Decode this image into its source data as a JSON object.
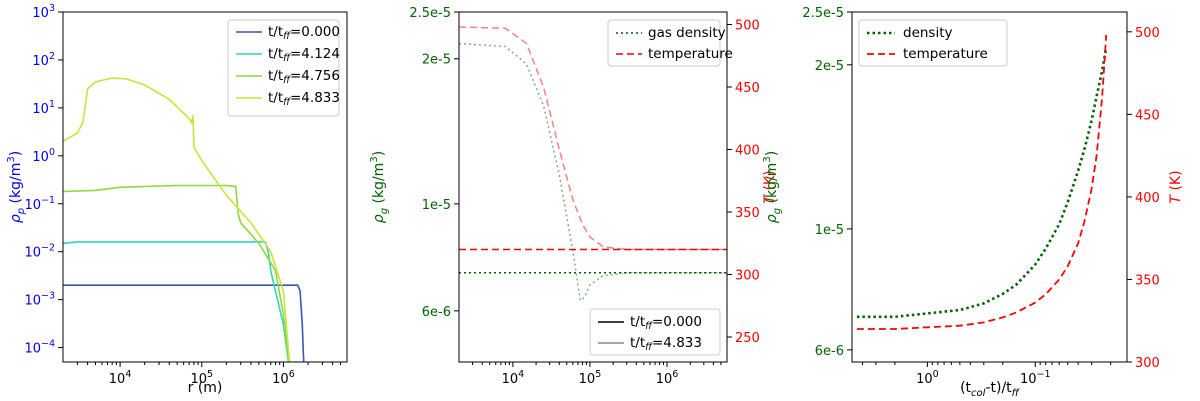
{
  "colors": {
    "p1_axis": "#0000ff",
    "green": "#006400",
    "red": "#ff0000",
    "s0": "#3b54b8",
    "s1": "#2fd8b9",
    "s2": "#8fd93a",
    "s3": "#c9e43b"
  },
  "chart_data": [
    {
      "type": "line",
      "xscale": "log",
      "yscale": "log",
      "xlim": [
        2000,
        6000000
      ],
      "ylim": [
        5e-05,
        1000
      ],
      "xlabel": "r (m)",
      "ylabel": "ρp (kg/m³)",
      "ylabel_parts": {
        "sym": "ρ",
        "sub": "p",
        "unit": " (kg/m",
        "sup": "3",
        "close": ")"
      },
      "xticks": [
        {
          "v": 10000,
          "b": "10",
          "e": "4"
        },
        {
          "v": 100000,
          "b": "10",
          "e": "5"
        },
        {
          "v": 1000000,
          "b": "10",
          "e": "6"
        }
      ],
      "yticks": [
        {
          "v": 0.0001,
          "b": "10",
          "e": "−4"
        },
        {
          "v": 0.001,
          "b": "10",
          "e": "−3"
        },
        {
          "v": 0.01,
          "b": "10",
          "e": "−2"
        },
        {
          "v": 0.1,
          "b": "10",
          "e": "−1"
        },
        {
          "v": 1,
          "b": "10",
          "e": "0"
        },
        {
          "v": 10,
          "b": "10",
          "e": "1"
        },
        {
          "v": 100,
          "b": "10",
          "e": "2"
        },
        {
          "v": 1000,
          "b": "10",
          "e": "3"
        }
      ],
      "legend_position": "top-right",
      "series": [
        {
          "name": "t/tff=0.000",
          "label": {
            "pre": "t/t",
            "sub": "ff",
            "post": "=0.000"
          },
          "color": "#3b54b8",
          "x": [
            2000,
            100000,
            1000000,
            1500000,
            1600000,
            1700000,
            1750000,
            1800000
          ],
          "y": [
            0.002,
            0.002,
            0.002,
            0.002,
            0.0015,
            0.0003,
            8e-05,
            3e-05
          ]
        },
        {
          "name": "t/tff=4.124",
          "label": {
            "pre": "t/t",
            "sub": "ff",
            "post": "=4.124"
          },
          "color": "#2fd8b9",
          "x": [
            2000,
            3000,
            100000,
            600000,
            650000,
            700000,
            800000,
            1000000,
            1200000
          ],
          "y": [
            0.015,
            0.016,
            0.016,
            0.016,
            0.01,
            0.004,
            0.0015,
            0.0003,
            3e-05
          ]
        },
        {
          "name": "t/tff=4.756",
          "label": {
            "pre": "t/t",
            "sub": "ff",
            "post": "=4.756"
          },
          "color": "#8fd93a",
          "x": [
            2000,
            5000,
            10000,
            50000,
            100000,
            200000,
            260000,
            280000,
            300000,
            500000,
            800000,
            1000000,
            1200000
          ],
          "y": [
            0.18,
            0.19,
            0.22,
            0.24,
            0.24,
            0.24,
            0.23,
            0.06,
            0.04,
            0.015,
            0.004,
            0.0005,
            3e-05
          ]
        },
        {
          "name": "t/tff=4.833",
          "label": {
            "pre": "t/t",
            "sub": "ff",
            "post": "=4.833"
          },
          "color": "#c9e43b",
          "x": [
            2000,
            2500,
            3000,
            3500,
            4000,
            5000,
            8000,
            12000,
            20000,
            40000,
            70000,
            75000,
            78000,
            80000,
            100000,
            150000,
            200000,
            400000,
            700000,
            1000000,
            1200000
          ],
          "y": [
            2,
            2.5,
            3,
            5,
            25,
            35,
            42,
            40,
            30,
            15,
            6,
            5,
            7,
            1.5,
            0.8,
            0.3,
            0.15,
            0.04,
            0.01,
            0.0015,
            4e-05
          ]
        }
      ]
    },
    {
      "type": "line",
      "xscale": "log",
      "yscale": "log",
      "xlim": [
        2000,
        6000000
      ],
      "ylim": [
        4.7e-06,
        2.5e-05
      ],
      "y2lim": [
        230,
        510
      ],
      "ylabel": "ρg (kg/m³)",
      "ylabel_parts": {
        "sym": "ρ",
        "sub": "g",
        "unit": " (kg/m",
        "sup": "3",
        "close": ")"
      },
      "y2label": "T (K)",
      "xticks": [
        {
          "v": 10000,
          "b": "10",
          "e": "4"
        },
        {
          "v": 100000,
          "b": "10",
          "e": "5"
        },
        {
          "v": 1000000,
          "b": "10",
          "e": "6"
        }
      ],
      "yticks": [
        {
          "v": 6e-06,
          "t": "6e-6"
        },
        {
          "v": 1e-05,
          "t": "1e-5"
        },
        {
          "v": 2e-05,
          "t": "2e-5"
        },
        {
          "v": 2.5e-05,
          "t": "2.5e-5"
        }
      ],
      "y2ticks": [
        250,
        300,
        350,
        400,
        450,
        500
      ],
      "legend_top": [
        {
          "name": "gas density",
          "color": "#006400",
          "dash": "dot"
        },
        {
          "name": "temperature",
          "color": "#ff0000",
          "dash": "dash"
        }
      ],
      "legend_bottom": [
        {
          "name": "t/tff=0.000",
          "label": {
            "pre": "t/t",
            "sub": "ff",
            "post": "=0.000"
          },
          "color": "#000000"
        },
        {
          "name": "t/tff=4.833",
          "label": {
            "pre": "t/t",
            "sub": "ff",
            "post": "=4.833"
          },
          "color": "#888888"
        }
      ],
      "density_series": [
        {
          "name": "t/tff=0.000",
          "x": [
            2000,
            6000000
          ],
          "y": [
            7.2e-06,
            7.2e-06
          ],
          "opacity": 1
        },
        {
          "name": "t/tff=4.833",
          "x": [
            2000,
            8000,
            15000,
            25000,
            40000,
            60000,
            75000,
            85000,
            100000,
            150000,
            300000,
            1000000,
            6000000
          ],
          "y": [
            2.15e-05,
            2.12e-05,
            1.95e-05,
            1.6e-05,
            1.15e-05,
            8e-06,
            6.3e-06,
            6.4e-06,
            6.8e-06,
            7.1e-06,
            7.2e-06,
            7.2e-06,
            7.2e-06
          ],
          "opacity": 0.5
        }
      ],
      "temperature_series": [
        {
          "name": "t/tff=0.000",
          "x": [
            2000,
            6000000
          ],
          "y": [
            320,
            320
          ],
          "opacity": 1
        },
        {
          "name": "t/tff=4.833",
          "x": [
            2000,
            8000,
            15000,
            25000,
            40000,
            60000,
            80000,
            100000,
            150000,
            300000,
            1000000,
            6000000
          ],
          "y": [
            498,
            497,
            485,
            450,
            400,
            360,
            340,
            330,
            322,
            320,
            320,
            320
          ],
          "opacity": 0.5
        }
      ]
    },
    {
      "type": "line",
      "xscale": "log",
      "x_inverted": true,
      "yscale": "log",
      "xlim": [
        5,
        0.0141
      ],
      "ylim": [
        5.7e-06,
        2.5e-05
      ],
      "y2lim": [
        300,
        512
      ],
      "xlabel": "(tcol-t)/tff",
      "xlabel_parts": {
        "a": "(t",
        "sub1": "col",
        "b": "-t)/t",
        "sub2": "ff"
      },
      "ylabel": "ρg (kg/m³)",
      "ylabel_parts": {
        "sym": "ρ",
        "sub": "g",
        "unit": " (kg/m",
        "sup": "3",
        "close": ")"
      },
      "y2label": "T (K)",
      "xticks": [
        {
          "v": 1,
          "b": "10",
          "e": "0"
        },
        {
          "v": 0.1,
          "b": "10",
          "e": "−1"
        }
      ],
      "yticks": [
        {
          "v": 6e-06,
          "t": "6e-6"
        },
        {
          "v": 1e-05,
          "t": "1e-5"
        },
        {
          "v": 2e-05,
          "t": "2e-5"
        },
        {
          "v": 2.5e-05,
          "t": "2.5e-5"
        }
      ],
      "y2ticks": [
        300,
        350,
        400,
        450,
        500
      ],
      "legend_position": "top-left",
      "series": [
        {
          "name": "density",
          "axis": "left",
          "color": "#006400",
          "dash": "dot",
          "x": [
            4.5,
            2,
            1,
            0.5,
            0.3,
            0.2,
            0.15,
            0.1,
            0.08,
            0.06,
            0.05,
            0.04,
            0.035,
            0.03,
            0.027,
            0.024,
            0.022
          ],
          "y": [
            6.9e-06,
            6.9e-06,
            7e-06,
            7.1e-06,
            7.3e-06,
            7.6e-06,
            7.9e-06,
            8.6e-06,
            9.2e-06,
            1.02e-05,
            1.12e-05,
            1.28e-05,
            1.4e-05,
            1.58e-05,
            1.75e-05,
            1.95e-05,
            2.15e-05
          ]
        },
        {
          "name": "temperature",
          "axis": "right",
          "color": "#ff0000",
          "dash": "dash",
          "x": [
            4.5,
            2,
            1,
            0.5,
            0.3,
            0.2,
            0.15,
            0.1,
            0.08,
            0.06,
            0.05,
            0.04,
            0.035,
            0.03,
            0.027,
            0.024,
            0.022
          ],
          "y": [
            320,
            320,
            321,
            322,
            324,
            327,
            330,
            336,
            341,
            350,
            358,
            372,
            385,
            405,
            425,
            460,
            498
          ]
        }
      ]
    }
  ]
}
